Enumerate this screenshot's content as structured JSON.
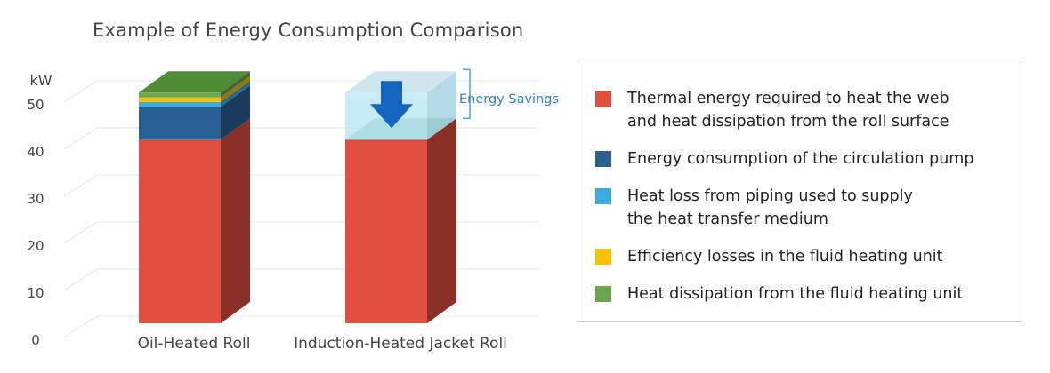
{
  "title": "Example of Energy Consumption Comparison",
  "colors": {
    "thermal": "#e04e3f",
    "pump": "#2a5f94",
    "piping": "#41aadd",
    "efficiency": "#f9c000",
    "dissipation": "#6aa84f",
    "savings_box": "#bfe8f3",
    "arrow": "#1565c0",
    "bracket": "#41aadd"
  },
  "chart_data": {
    "type": "bar",
    "stacked": true,
    "ylabel": "kW",
    "ylim": [
      0,
      55
    ],
    "yticks": [
      0,
      10,
      20,
      30,
      40,
      50
    ],
    "categories": [
      "Oil-Heated Roll",
      "Induction-Heated Jacket Roll"
    ],
    "series": [
      {
        "name": "Thermal energy required to heat the web\nand heat dissipation from the roll surface",
        "key": "thermal",
        "values": [
          39,
          39
        ]
      },
      {
        "name": "Energy consumption of the circulation pump",
        "key": "pump",
        "values": [
          7,
          0
        ]
      },
      {
        "name": "Heat loss from piping used to supply\nthe heat transfer medium",
        "key": "piping",
        "values": [
          1,
          0
        ]
      },
      {
        "name": "Efficiency losses in the fluid heating unit",
        "key": "efficiency",
        "values": [
          1,
          0
        ]
      },
      {
        "name": "Heat dissipation from the fluid heating unit",
        "key": "dissipation",
        "values": [
          1,
          0
        ]
      }
    ],
    "annotation": "Energy Savings",
    "grid": true,
    "legend_position": "right"
  }
}
